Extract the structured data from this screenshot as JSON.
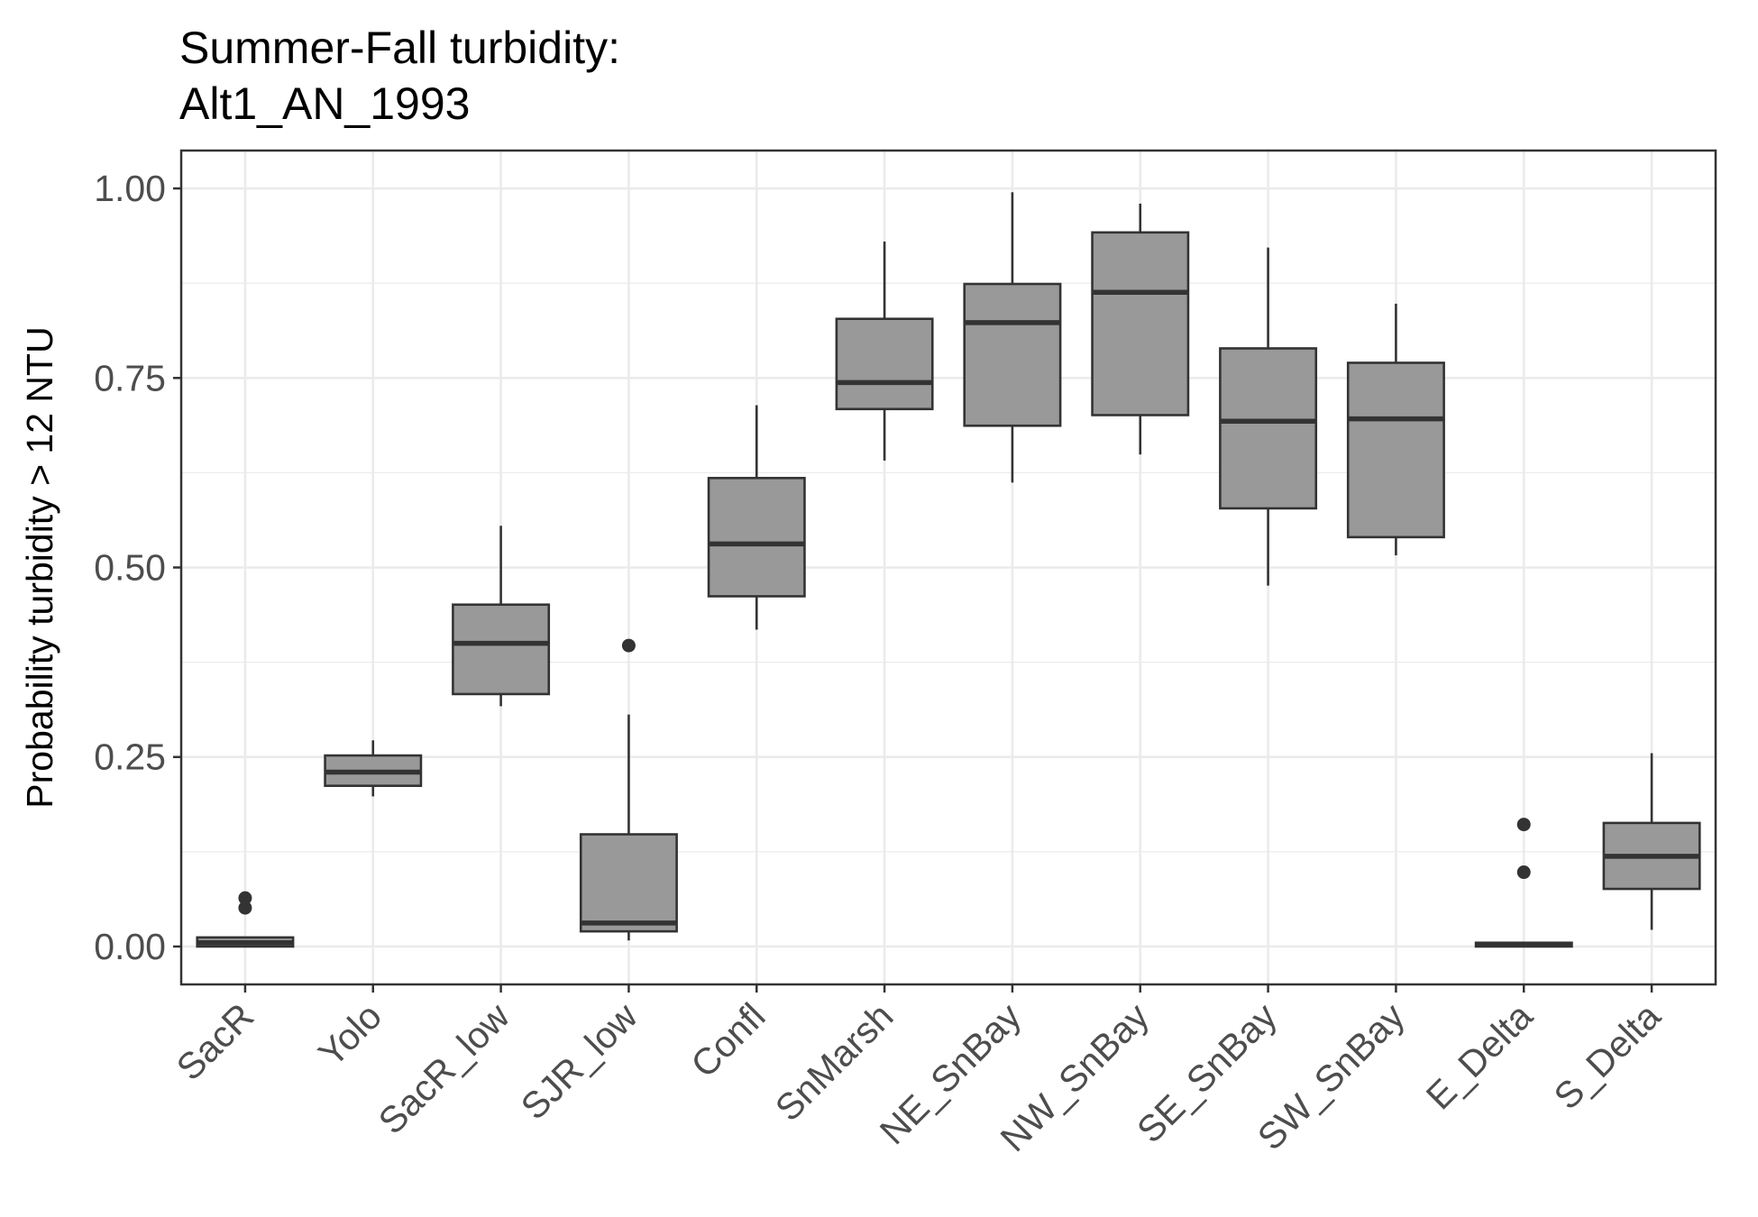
{
  "chart_data": {
    "type": "boxplot",
    "title": "Summer-Fall turbidity:",
    "subtitle": "Alt1_AN_1993",
    "ylabel": "Probability turbidity > 12 NTU",
    "xlabel": "",
    "ylim": [
      -0.05,
      1.05
    ],
    "yticks": [
      "0.00",
      "0.25",
      "0.50",
      "0.75",
      "1.00"
    ],
    "ytick_values": [
      0,
      0.25,
      0.5,
      0.75,
      1.0
    ],
    "grid": true,
    "colors": {
      "box_fill": "#999999",
      "box_line": "#333333",
      "grid": "#ebebeb",
      "panel_border": "#333333"
    },
    "categories": [
      "SacR",
      "Yolo",
      "SacR_low",
      "SJR_low",
      "Confl",
      "SnMarsh",
      "NE_SnBay",
      "NW_SnBay",
      "SE_SnBay",
      "SW_SnBay",
      "E_Delta",
      "S_Delta"
    ],
    "boxes": [
      {
        "category": "SacR",
        "min": 0.0,
        "q1": 0.0,
        "median": 0.005,
        "q3": 0.012,
        "max": 0.012,
        "outliers": [
          0.051,
          0.064
        ]
      },
      {
        "category": "Yolo",
        "min": 0.198,
        "q1": 0.212,
        "median": 0.23,
        "q3": 0.252,
        "max": 0.272,
        "outliers": []
      },
      {
        "category": "SacR_low",
        "min": 0.317,
        "q1": 0.333,
        "median": 0.4,
        "q3": 0.451,
        "max": 0.555,
        "outliers": []
      },
      {
        "category": "SJR_low",
        "min": 0.008,
        "q1": 0.02,
        "median": 0.031,
        "q3": 0.148,
        "max": 0.306,
        "outliers": [
          0.397
        ]
      },
      {
        "category": "Confl",
        "min": 0.418,
        "q1": 0.462,
        "median": 0.531,
        "q3": 0.618,
        "max": 0.714,
        "outliers": []
      },
      {
        "category": "SnMarsh",
        "min": 0.641,
        "q1": 0.709,
        "median": 0.744,
        "q3": 0.828,
        "max": 0.93,
        "outliers": []
      },
      {
        "category": "NE_SnBay",
        "min": 0.612,
        "q1": 0.687,
        "median": 0.823,
        "q3": 0.874,
        "max": 0.995,
        "outliers": []
      },
      {
        "category": "NW_SnBay",
        "min": 0.649,
        "q1": 0.701,
        "median": 0.863,
        "q3": 0.942,
        "max": 0.98,
        "outliers": []
      },
      {
        "category": "SE_SnBay",
        "min": 0.476,
        "q1": 0.578,
        "median": 0.693,
        "q3": 0.789,
        "max": 0.922,
        "outliers": []
      },
      {
        "category": "SW_SnBay",
        "min": 0.516,
        "q1": 0.54,
        "median": 0.696,
        "q3": 0.77,
        "max": 0.848,
        "outliers": []
      },
      {
        "category": "E_Delta",
        "min": 0.0,
        "q1": 0.0,
        "median": 0.002,
        "q3": 0.005,
        "max": 0.005,
        "outliers": [
          0.098,
          0.161
        ]
      },
      {
        "category": "S_Delta",
        "min": 0.022,
        "q1": 0.076,
        "median": 0.119,
        "q3": 0.163,
        "max": 0.255,
        "outliers": []
      }
    ]
  }
}
